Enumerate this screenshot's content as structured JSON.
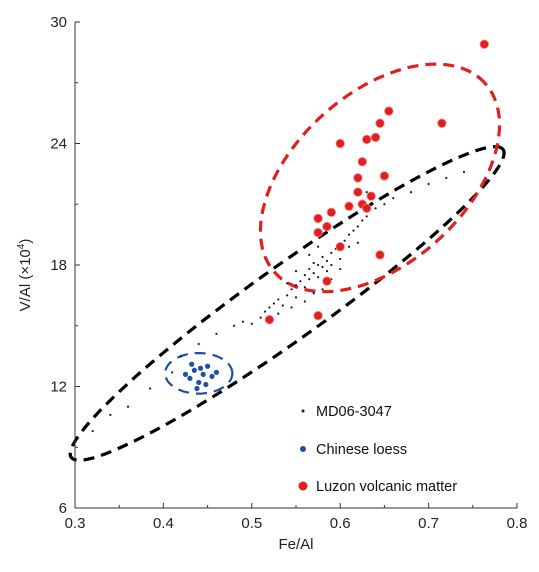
{
  "chart_data": {
    "type": "scatter",
    "title": "",
    "xlabel": "Fe/Al",
    "ylabel_text": "V/Al (×10",
    "ylabel_exponent": "4",
    "ylabel_close": ")",
    "xlim": [
      0.3,
      0.8
    ],
    "ylim": [
      6,
      30
    ],
    "x_ticks": [
      0.3,
      0.4,
      0.5,
      0.6,
      0.7,
      0.8
    ],
    "x_tick_labels": [
      "0.3",
      "0.4",
      "0.5",
      "0.6",
      "0.7",
      "0.8"
    ],
    "y_ticks": [
      6,
      12,
      18,
      24,
      30
    ],
    "y_tick_labels": [
      "6",
      "12",
      "18",
      "24",
      "30"
    ],
    "grid": false,
    "legend_position": "bottom-right",
    "series": [
      {
        "name": "MD06-3047",
        "color": "#1a1a1a",
        "marker": "small-dot",
        "points": [
          [
            0.32,
            9.8
          ],
          [
            0.34,
            10.6
          ],
          [
            0.36,
            11.0
          ],
          [
            0.385,
            11.9
          ],
          [
            0.41,
            12.7
          ],
          [
            0.42,
            13.5
          ],
          [
            0.44,
            14.1
          ],
          [
            0.46,
            14.6
          ],
          [
            0.48,
            15.0
          ],
          [
            0.49,
            15.2
          ],
          [
            0.5,
            15.1
          ],
          [
            0.51,
            15.4
          ],
          [
            0.515,
            15.7
          ],
          [
            0.52,
            15.9
          ],
          [
            0.525,
            16.1
          ],
          [
            0.53,
            16.3
          ],
          [
            0.535,
            16.0
          ],
          [
            0.54,
            16.5
          ],
          [
            0.545,
            16.8
          ],
          [
            0.55,
            16.4
          ],
          [
            0.55,
            17.0
          ],
          [
            0.555,
            17.2
          ],
          [
            0.56,
            16.9
          ],
          [
            0.56,
            17.5
          ],
          [
            0.565,
            17.3
          ],
          [
            0.565,
            17.8
          ],
          [
            0.57,
            17.6
          ],
          [
            0.57,
            18.1
          ],
          [
            0.575,
            17.4
          ],
          [
            0.575,
            18.0
          ],
          [
            0.58,
            17.9
          ],
          [
            0.58,
            18.4
          ],
          [
            0.585,
            18.2
          ],
          [
            0.585,
            17.7
          ],
          [
            0.59,
            18.6
          ],
          [
            0.59,
            18.0
          ],
          [
            0.595,
            18.8
          ],
          [
            0.6,
            18.3
          ],
          [
            0.6,
            19.0
          ],
          [
            0.605,
            19.2
          ],
          [
            0.61,
            18.9
          ],
          [
            0.61,
            19.5
          ],
          [
            0.615,
            19.7
          ],
          [
            0.62,
            19.9
          ],
          [
            0.625,
            20.2
          ],
          [
            0.63,
            20.4
          ],
          [
            0.64,
            20.8
          ],
          [
            0.65,
            21.0
          ],
          [
            0.66,
            21.3
          ],
          [
            0.68,
            21.6
          ],
          [
            0.7,
            22.0
          ],
          [
            0.72,
            22.3
          ],
          [
            0.74,
            22.6
          ],
          [
            0.545,
            15.9
          ],
          [
            0.57,
            16.6
          ],
          [
            0.58,
            16.8
          ],
          [
            0.56,
            16.2
          ],
          [
            0.59,
            17.3
          ],
          [
            0.6,
            17.8
          ],
          [
            0.53,
            15.6
          ],
          [
            0.62,
            19.1
          ],
          [
            0.55,
            17.7
          ],
          [
            0.565,
            18.5
          ],
          [
            0.575,
            18.9
          ],
          [
            0.54,
            17.1
          ],
          [
            0.6,
            20.0
          ],
          [
            0.63,
            21.6
          ]
        ]
      },
      {
        "name": "Chinese loess",
        "color": "#1f4fa8",
        "marker": "dot",
        "points": [
          [
            0.43,
            12.4
          ],
          [
            0.435,
            12.8
          ],
          [
            0.44,
            12.2
          ],
          [
            0.445,
            12.6
          ],
          [
            0.438,
            11.9
          ],
          [
            0.45,
            13.0
          ],
          [
            0.432,
            13.1
          ],
          [
            0.455,
            12.5
          ],
          [
            0.442,
            12.9
          ],
          [
            0.448,
            12.1
          ],
          [
            0.425,
            12.6
          ],
          [
            0.46,
            12.7
          ]
        ]
      },
      {
        "name": "Luzon volcanic matter",
        "color": "#e02020",
        "marker": "circle",
        "points": [
          [
            0.52,
            15.3
          ],
          [
            0.575,
            15.5
          ],
          [
            0.585,
            17.2
          ],
          [
            0.575,
            19.6
          ],
          [
            0.575,
            20.3
          ],
          [
            0.585,
            19.9
          ],
          [
            0.59,
            20.6
          ],
          [
            0.6,
            18.9
          ],
          [
            0.61,
            20.9
          ],
          [
            0.62,
            21.6
          ],
          [
            0.625,
            21.0
          ],
          [
            0.63,
            20.8
          ],
          [
            0.635,
            21.4
          ],
          [
            0.645,
            18.5
          ],
          [
            0.62,
            22.3
          ],
          [
            0.625,
            23.1
          ],
          [
            0.63,
            24.2
          ],
          [
            0.64,
            24.3
          ],
          [
            0.645,
            25.0
          ],
          [
            0.65,
            22.4
          ],
          [
            0.655,
            25.6
          ],
          [
            0.6,
            24.0
          ],
          [
            0.715,
            25.0
          ],
          [
            0.763,
            28.9
          ]
        ]
      }
    ],
    "ellipses": [
      {
        "name": "MD06-3047 field",
        "color": "#000000",
        "cx": 0.54,
        "cy": 16.1,
        "rx": 0.3,
        "ry": 1.8,
        "angle_deg": 35.5
      },
      {
        "name": "Chinese loess field",
        "color": "#1f4fa8",
        "cx": 0.44,
        "cy": 12.65,
        "rx": 0.038,
        "ry": 1.0,
        "angle_deg": 0
      },
      {
        "name": "Luzon volcanic matter field",
        "color": "#e02020",
        "cx": 0.645,
        "cy": 22.3,
        "rx": 0.16,
        "ry": 4.2,
        "angle_deg": 42
      }
    ]
  }
}
